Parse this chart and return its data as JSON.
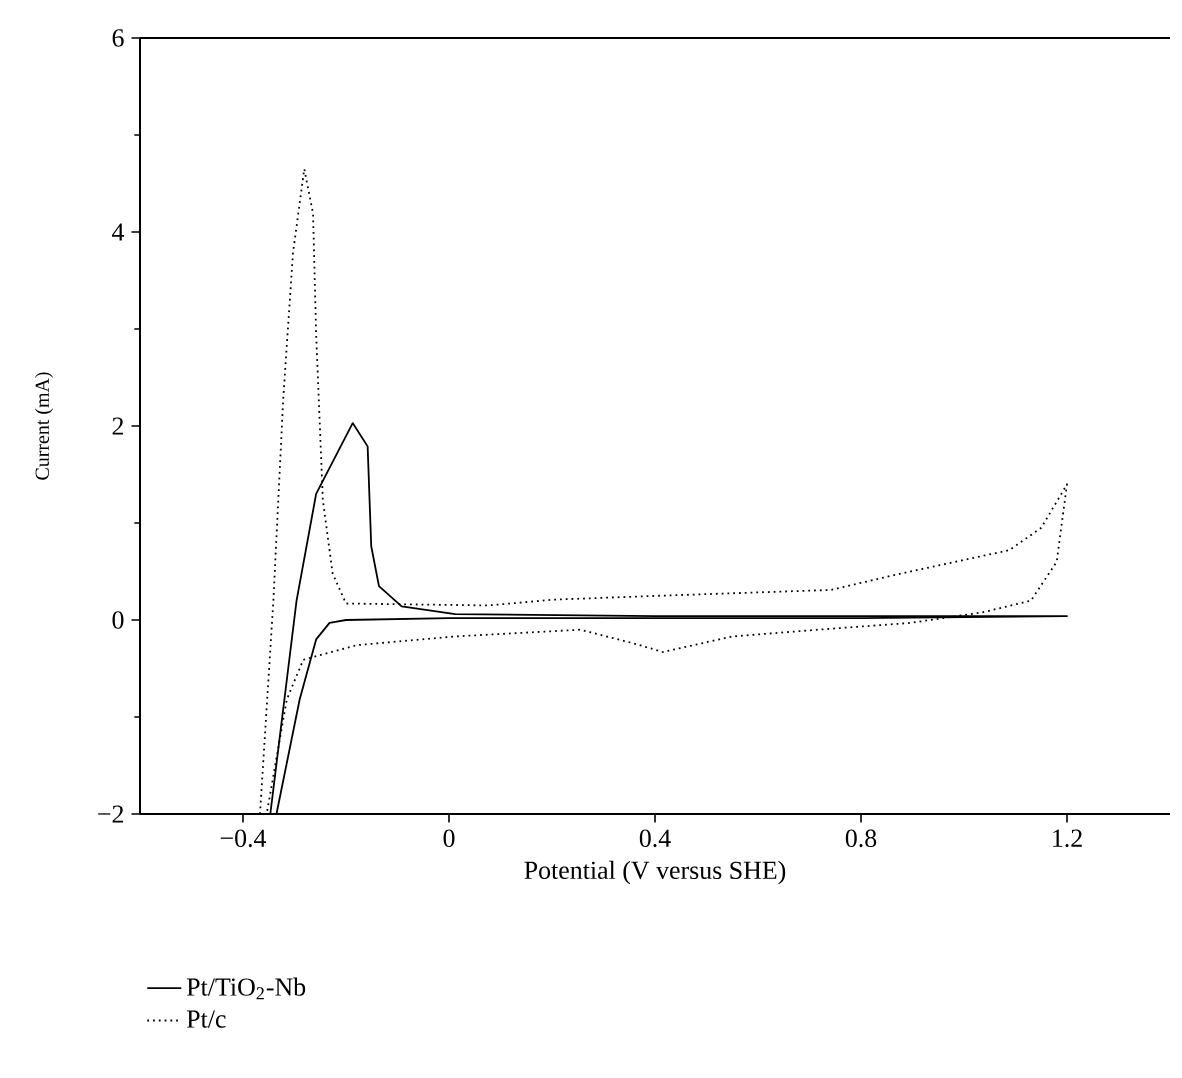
{
  "chart_data": {
    "type": "line",
    "xlabel": "Potential (V versus SHE)",
    "ylabel": "Current (mA)",
    "xlim": [
      -0.6,
      1.4
    ],
    "ylim": [
      -2,
      6
    ],
    "xticks": [
      {
        "value": -0.4,
        "label": "−0.4"
      },
      0,
      0.4,
      0.8,
      1.2
    ],
    "yticks": [
      {
        "value": -2,
        "label": "−2"
      },
      0,
      2,
      4,
      6
    ],
    "legend": "bottom",
    "marker": "none",
    "grid": false,
    "series": [
      {
        "name": "Pt/TiO$_{2}$-Nb",
        "color": "#000000",
        "line_style": "solid",
        "x": [
          -0.347,
          -0.296,
          -0.258,
          -0.187,
          -0.158,
          -0.151,
          -0.136,
          -0.092,
          0.012,
          0.4,
          0.8,
          1.2,
          0.8,
          0.4,
          0.0,
          -0.1,
          -0.2,
          -0.232,
          -0.258,
          -0.29,
          -0.335
        ],
        "values": [
          -2,
          0.2,
          1.3,
          2.03,
          1.79,
          0.76,
          0.35,
          0.14,
          0.06,
          0.04,
          0.04,
          0.04,
          0.02,
          0.02,
          0.02,
          0.01,
          0.0,
          -0.03,
          -0.2,
          -0.82,
          -2
        ]
      },
      {
        "name": "Pt/c",
        "color": "#000000",
        "line_style": "dotted",
        "x": [
          -0.367,
          -0.341,
          -0.322,
          -0.303,
          -0.281,
          -0.264,
          -0.258,
          -0.245,
          -0.226,
          -0.2,
          0.076,
          0.204,
          0.408,
          0.742,
          0.87,
          1.088,
          1.15,
          1.2,
          1.18,
          1.13,
          1.037,
          0.896,
          0.716,
          0.55,
          0.415,
          0.358,
          0.255,
          0.01,
          -0.18,
          -0.283,
          -0.315,
          -0.354
        ],
        "values": [
          -2,
          0.2,
          2.27,
          3.78,
          4.65,
          4.19,
          2.95,
          1.24,
          0.48,
          0.17,
          0.15,
          0.21,
          0.25,
          0.31,
          0.47,
          0.72,
          0.95,
          1.4,
          0.6,
          0.2,
          0.08,
          -0.03,
          -0.1,
          -0.17,
          -0.33,
          -0.24,
          -0.1,
          -0.17,
          -0.26,
          -0.41,
          -0.82,
          -2
        ]
      }
    ]
  }
}
